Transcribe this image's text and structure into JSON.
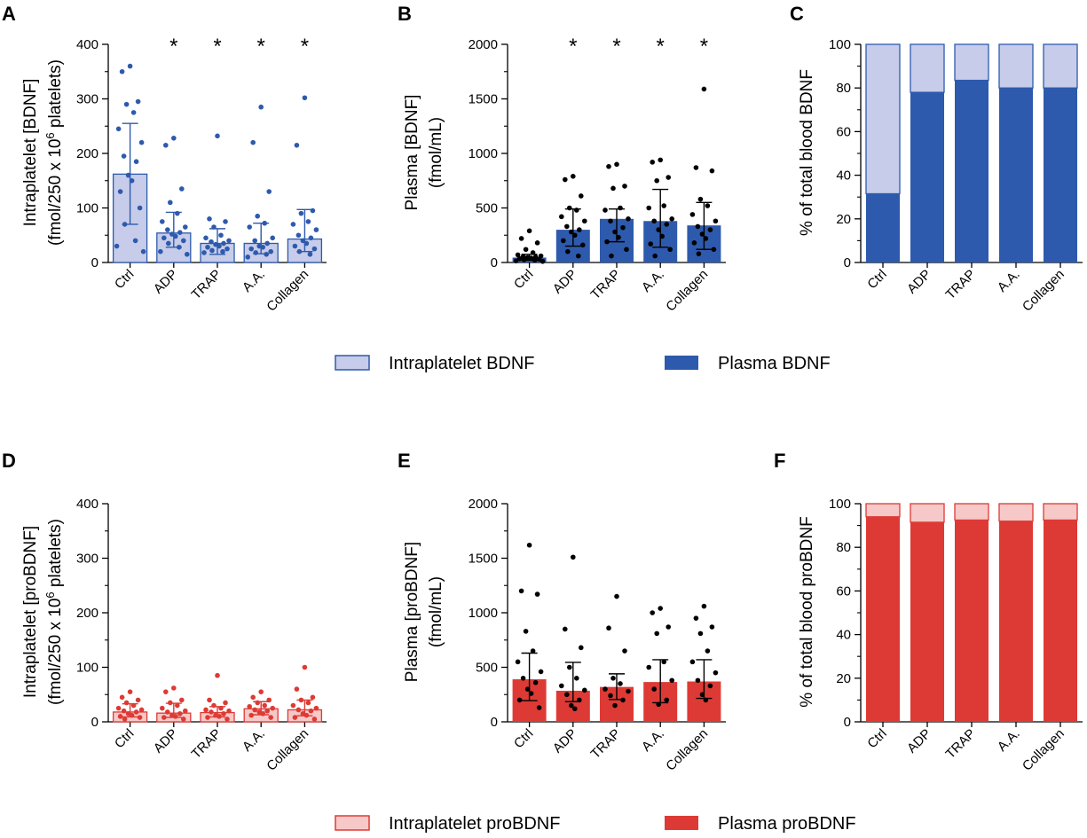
{
  "colors": {
    "blue_dark": "#2e5aad",
    "blue_light": "#c6cce9",
    "blue_stroke": "#2e5aad",
    "red_dark": "#de3a35",
    "red_light": "#f6c9c8",
    "red_stroke": "#de3a35",
    "black": "#000000"
  },
  "panels": {
    "A": {
      "letter": "A",
      "ylabel_line1": "Intraplatelet [BDNF]",
      "ylabel_line2_pre": "(fmol/250 x 10",
      "ylabel_line2_sup": "6",
      "ylabel_line2_post": " platelets)"
    },
    "B": {
      "letter": "B",
      "ylabel_line1": "Plasma [BDNF]",
      "ylabel_line2": "(fmol/mL)"
    },
    "C": {
      "letter": "C",
      "ylabel": "% of total blood BDNF"
    },
    "D": {
      "letter": "D",
      "ylabel_line1": "Intraplatelet [proBDNF]",
      "ylabel_line2_pre": "(fmol/250 x 10",
      "ylabel_line2_sup": "6",
      "ylabel_line2_post": " platelets)"
    },
    "E": {
      "letter": "E",
      "ylabel_line1": "Plasma [proBDNF]",
      "ylabel_line2": "(fmol/mL)"
    },
    "F": {
      "letter": "F",
      "ylabel": "% of total blood proBDNF"
    }
  },
  "legends": {
    "bdnf": {
      "intraplatelet": "Intraplatelet BDNF",
      "plasma": "Plasma BDNF"
    },
    "probdnf": {
      "intraplatelet": "Intraplatelet proBDNF",
      "plasma": "Plasma proBDNF"
    }
  },
  "chart_data": [
    {
      "id": "A",
      "type": "bar",
      "title": "",
      "categories": [
        "Ctrl",
        "ADP",
        "TRAP",
        "A.A.",
        "Collagen"
      ],
      "ylabel": "Intraplatelet [BDNF] (fmol/250 x 10^6 platelets)",
      "ylim": [
        0,
        400
      ],
      "yticks": [
        0,
        100,
        200,
        300,
        400
      ],
      "values": [
        162,
        54,
        35,
        35,
        43
      ],
      "error_upper": [
        255,
        92,
        62,
        72,
        97
      ],
      "error_lower": [
        70,
        28,
        15,
        16,
        20
      ],
      "significance": [
        "",
        "*",
        "*",
        "*",
        "*"
      ],
      "points": [
        [
          360,
          350,
          295,
          290,
          275,
          245,
          220,
          195,
          185,
          160,
          150,
          130,
          100,
          70,
          40,
          30,
          20
        ],
        [
          228,
          215,
          135,
          110,
          90,
          75,
          65,
          60,
          55,
          52,
          48,
          45,
          40,
          35,
          28,
          20,
          15
        ],
        [
          232,
          80,
          75,
          65,
          50,
          45,
          40,
          38,
          35,
          33,
          30,
          28,
          25,
          22,
          20,
          18
        ],
        [
          285,
          220,
          130,
          85,
          72,
          65,
          45,
          40,
          35,
          30,
          28,
          25,
          20,
          18,
          15,
          10
        ],
        [
          302,
          215,
          95,
          90,
          75,
          70,
          60,
          50,
          45,
          40,
          35,
          30,
          25,
          20,
          15
        ]
      ]
    },
    {
      "id": "B",
      "type": "bar",
      "title": "",
      "categories": [
        "Ctrl",
        "ADP",
        "TRAP",
        "A.A.",
        "Collagen"
      ],
      "ylabel": "Plasma [BDNF] (fmol/mL)",
      "ylim": [
        0,
        2000
      ],
      "yticks": [
        0,
        500,
        1000,
        1500,
        2000
      ],
      "values": [
        45,
        300,
        400,
        380,
        340
      ],
      "error_upper": [
        75,
        490,
        490,
        670,
        550
      ],
      "error_lower": [
        20,
        150,
        190,
        140,
        120
      ],
      "significance": [
        "",
        "*",
        "*",
        "*",
        "*"
      ],
      "points": [
        [
          290,
          220,
          180,
          120,
          90,
          70,
          60,
          55,
          50,
          45,
          40,
          35,
          30,
          25,
          20,
          15,
          10
        ],
        [
          790,
          760,
          610,
          500,
          480,
          420,
          380,
          330,
          300,
          280,
          250,
          200,
          160,
          100,
          60
        ],
        [
          900,
          880,
          700,
          680,
          500,
          480,
          400,
          380,
          320,
          280,
          230,
          190,
          120,
          60
        ],
        [
          940,
          920,
          780,
          750,
          520,
          500,
          400,
          380,
          350,
          300,
          240,
          170,
          120,
          60
        ],
        [
          1590,
          870,
          840,
          580,
          520,
          440,
          380,
          330,
          300,
          260,
          220,
          180,
          120,
          80
        ]
      ]
    },
    {
      "id": "C",
      "type": "bar",
      "title": "",
      "stacked": true,
      "categories": [
        "Ctrl",
        "ADP",
        "TRAP",
        "A.A.",
        "Collagen"
      ],
      "ylabel": "% of total blood BDNF",
      "ylim": [
        0,
        100
      ],
      "yticks": [
        0,
        20,
        40,
        60,
        80,
        100
      ],
      "series": [
        {
          "name": "Plasma BDNF",
          "values": [
            31.5,
            78,
            83.5,
            80,
            80
          ]
        },
        {
          "name": "Intraplatelet BDNF",
          "values": [
            68.5,
            22,
            16.5,
            20,
            20
          ]
        }
      ]
    },
    {
      "id": "D",
      "type": "bar",
      "title": "",
      "categories": [
        "Ctrl",
        "ADP",
        "TRAP",
        "A.A.",
        "Collagen"
      ],
      "ylabel": "Intraplatelet [proBDNF] (fmol/250 x 10^6 platelets)",
      "ylim": [
        0,
        400
      ],
      "yticks": [
        0,
        100,
        200,
        300,
        400
      ],
      "values": [
        18,
        16,
        17,
        24,
        22
      ],
      "error_upper": [
        33,
        34,
        28,
        37,
        40
      ],
      "error_lower": [
        9,
        8,
        9,
        13,
        11
      ],
      "significance": [
        "",
        "",
        "",
        "",
        ""
      ],
      "points": [
        [
          55,
          45,
          40,
          35,
          30,
          25,
          22,
          20,
          18,
          15,
          12,
          10,
          8,
          5
        ],
        [
          62,
          55,
          40,
          35,
          30,
          25,
          20,
          18,
          15,
          12,
          10,
          8,
          5
        ],
        [
          85,
          40,
          35,
          30,
          25,
          22,
          20,
          18,
          15,
          12,
          10,
          8,
          5
        ],
        [
          55,
          45,
          40,
          35,
          30,
          28,
          25,
          22,
          20,
          18,
          15,
          12,
          8
        ],
        [
          100,
          60,
          45,
          40,
          35,
          30,
          25,
          22,
          20,
          15,
          12,
          8,
          5
        ]
      ]
    },
    {
      "id": "E",
      "type": "bar",
      "title": "",
      "categories": [
        "Ctrl",
        "ADP",
        "TRAP",
        "A.A.",
        "Collagen"
      ],
      "ylabel": "Plasma [proBDNF] (fmol/mL)",
      "ylim": [
        0,
        2000
      ],
      "yticks": [
        0,
        500,
        1000,
        1500,
        2000
      ],
      "values": [
        390,
        285,
        320,
        365,
        370
      ],
      "error_upper": [
        630,
        545,
        440,
        570,
        570
      ],
      "error_lower": [
        195,
        185,
        205,
        175,
        215
      ],
      "significance": [
        "",
        "",
        "",
        "",
        ""
      ],
      "points": [
        [
          1620,
          1200,
          1170,
          830,
          650,
          550,
          460,
          400,
          360,
          300,
          260,
          200,
          130
        ],
        [
          1510,
          850,
          680,
          500,
          400,
          330,
          290,
          250,
          200,
          150,
          120
        ],
        [
          1150,
          860,
          650,
          400,
          350,
          300,
          280,
          240,
          200,
          150
        ],
        [
          1040,
          1000,
          870,
          810,
          550,
          500,
          380,
          300,
          200,
          160
        ],
        [
          1060,
          950,
          870,
          810,
          650,
          550,
          450,
          380,
          330,
          250,
          200
        ]
      ]
    },
    {
      "id": "F",
      "type": "bar",
      "title": "",
      "stacked": true,
      "categories": [
        "Ctrl",
        "ADP",
        "TRAP",
        "A.A.",
        "Collagen"
      ],
      "ylabel": "% of total blood proBDNF",
      "ylim": [
        0,
        100
      ],
      "yticks": [
        0,
        20,
        40,
        60,
        80,
        100
      ],
      "series": [
        {
          "name": "Plasma proBDNF",
          "values": [
            94,
            91.5,
            92.5,
            92,
            92.5
          ]
        },
        {
          "name": "Intraplatelet proBDNF",
          "values": [
            6,
            8.5,
            7.5,
            8,
            7.5
          ]
        }
      ]
    }
  ]
}
